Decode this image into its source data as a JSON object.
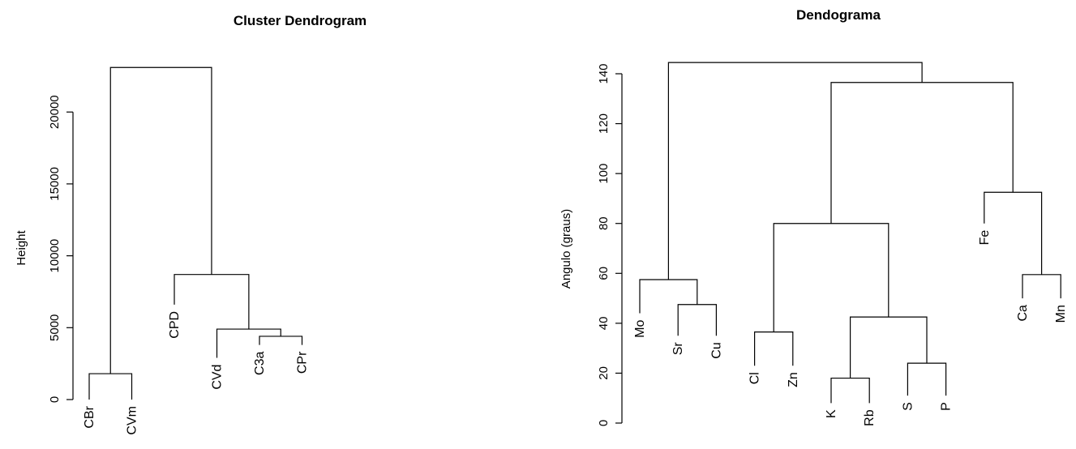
{
  "chart_data": [
    {
      "type": "dendrogram",
      "title": "Cluster Dendrogram",
      "xlabel": "",
      "ylabel": "Height",
      "ylim": [
        0,
        23000
      ],
      "yticks": [
        0,
        5000,
        10000,
        15000,
        20000
      ],
      "leaves": [
        "CBr",
        "CVm",
        "CPD",
        "CVd",
        "C3a",
        "CPr"
      ],
      "leaf_heights": [
        0,
        0,
        6600,
        2900,
        3800,
        3800
      ],
      "merges": [
        {
          "left": "CBr",
          "right": "CVm",
          "height": 1800
        },
        {
          "left": "C3a",
          "right": "CPr",
          "height": 4400
        },
        {
          "left": "CVd",
          "right": "C3a+CPr",
          "height": 4900
        },
        {
          "left": "CPD",
          "right": "CVd+C3a+CPr",
          "height": 8700
        },
        {
          "left": "CBr+CVm",
          "right": "CPD+CVd+C3a+CPr",
          "height": 23100
        }
      ]
    },
    {
      "type": "dendrogram",
      "title": "Dendograma",
      "xlabel": "",
      "ylabel": "Angulo (graus)",
      "ylim": [
        0,
        145
      ],
      "yticks": [
        0,
        20,
        40,
        60,
        80,
        100,
        120,
        140
      ],
      "leaves": [
        "Mo",
        "Sr",
        "Cu",
        "Cl",
        "Zn",
        "K",
        "Rb",
        "S",
        "P",
        "Fe",
        "Ca",
        "Mn"
      ],
      "leaf_heights": [
        44,
        35,
        35,
        23,
        23,
        8,
        8,
        11,
        11,
        80,
        50,
        50
      ],
      "merges": [
        {
          "left": "Sr",
          "right": "Cu",
          "height": 47.5
        },
        {
          "left": "Mo",
          "right": "Sr+Cu",
          "height": 57.5
        },
        {
          "left": "Cl",
          "right": "Zn",
          "height": 36.5
        },
        {
          "left": "K",
          "right": "Rb",
          "height": 18
        },
        {
          "left": "S",
          "right": "P",
          "height": 24
        },
        {
          "left": "K+Rb",
          "right": "S+P",
          "height": 42.5
        },
        {
          "left": "Cl+Zn",
          "right": "K+Rb+S+P",
          "height": 80
        },
        {
          "left": "Ca",
          "right": "Mn",
          "height": 59.5
        },
        {
          "left": "Fe",
          "right": "Ca+Mn",
          "height": 92.5
        },
        {
          "left": "Cl+Zn+K+Rb+S+P",
          "right": "Fe+Ca+Mn",
          "height": 136.5
        },
        {
          "left": "Mo+Sr+Cu",
          "right": "Cl+Zn+K+Rb+S+P+Fe+Ca+Mn",
          "height": 144.5
        }
      ]
    }
  ]
}
